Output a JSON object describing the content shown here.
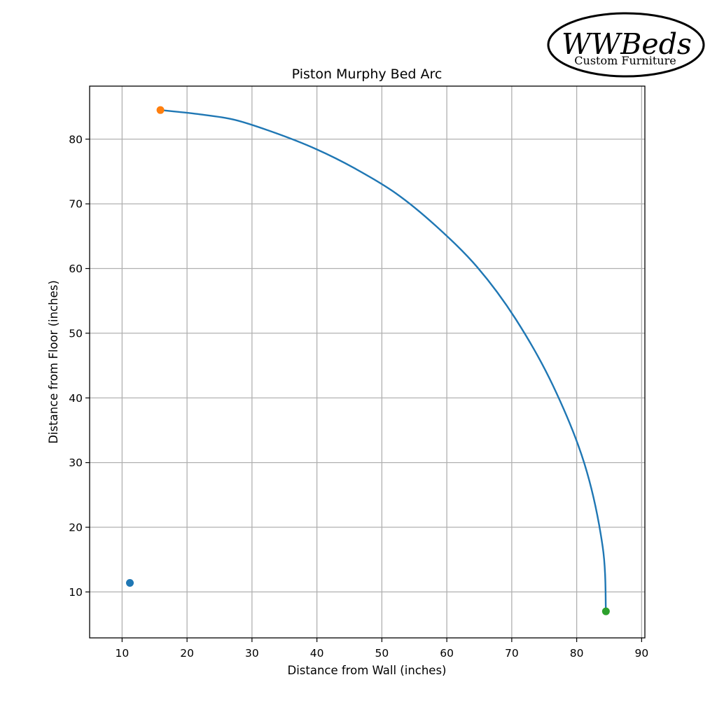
{
  "logo": {
    "name": "WWBeds",
    "tagline": "Custom Furniture"
  },
  "chart_data": {
    "type": "line",
    "title": "Piston Murphy Bed Arc",
    "xlabel": "Distance from Wall (inches)",
    "ylabel": "Distance from Floor (inches)",
    "xlim": [
      5,
      90.5
    ],
    "ylim": [
      2.9,
      88.2
    ],
    "xticks": [
      10,
      20,
      30,
      40,
      50,
      60,
      70,
      80,
      90
    ],
    "yticks": [
      10,
      20,
      30,
      40,
      50,
      60,
      70,
      80
    ],
    "grid": true,
    "legend": "none",
    "colors": {
      "arc": "#1f77b4",
      "pivot": "#1f77b4",
      "start": "#ff7f0e",
      "end": "#2ca02c",
      "grid": "#b0b0b0"
    },
    "series": [
      {
        "type": "line",
        "x": [
          15.9,
          21.5,
          27.3,
          33.5,
          39.8,
          45.8,
          52.2,
          58.3,
          64.7,
          70.6,
          76.3,
          81.2,
          84.0,
          84.5
        ],
        "y": [
          84.5,
          83.9,
          83.0,
          81.0,
          78.5,
          75.5,
          71.6,
          66.6,
          60.2,
          52.2,
          42.0,
          29.8,
          17.0,
          7.0
        ]
      },
      {
        "type": "scatter",
        "points": [
          {
            "x": 11.2,
            "y": 11.4,
            "color": "#1f77b4"
          },
          {
            "x": 15.9,
            "y": 84.5,
            "color": "#ff7f0e"
          },
          {
            "x": 84.5,
            "y": 7.0,
            "color": "#2ca02c"
          }
        ]
      }
    ]
  }
}
